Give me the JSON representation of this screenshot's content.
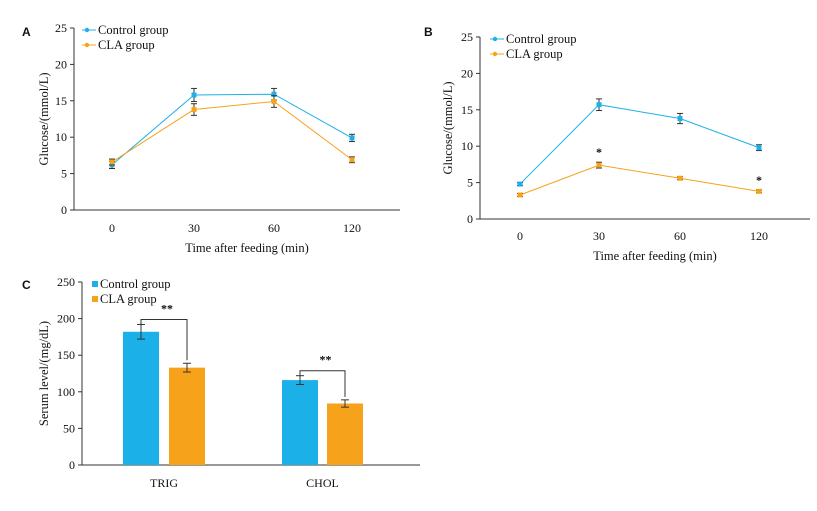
{
  "colors": {
    "control": "#1cb0e8",
    "cla": "#f7a21b"
  },
  "chart_data": [
    {
      "panel": "A",
      "type": "line",
      "x": [
        0,
        30,
        60,
        120
      ],
      "xtick_labels": [
        "0",
        "30",
        "60",
        "120"
      ],
      "xlabel": "Time after feeding (min)",
      "ylabel": "Glucose/(mmol/L)",
      "ylim": [
        0,
        25
      ],
      "yticks": [
        0,
        5,
        10,
        15,
        20,
        25
      ],
      "legend_position": "top-left",
      "series": [
        {
          "name": "Control group",
          "values": [
            6.2,
            15.8,
            15.9,
            9.9
          ],
          "errors": [
            0.5,
            0.9,
            0.8,
            0.5
          ]
        },
        {
          "name": "CLA group",
          "values": [
            6.6,
            13.8,
            14.9,
            6.9
          ],
          "errors": [
            0.4,
            0.8,
            0.8,
            0.4
          ]
        }
      ],
      "annotations": []
    },
    {
      "panel": "B",
      "type": "line",
      "x": [
        0,
        30,
        60,
        120
      ],
      "xtick_labels": [
        "0",
        "30",
        "60",
        "120"
      ],
      "xlabel": "Time after feeding (min)",
      "ylabel": "Glucose/(mmol/L)",
      "ylim": [
        0,
        25
      ],
      "yticks": [
        0,
        5,
        10,
        15,
        20,
        25
      ],
      "legend_position": "top-left",
      "series": [
        {
          "name": "Control group",
          "values": [
            4.8,
            15.7,
            13.8,
            9.8
          ],
          "errors": [
            0.2,
            0.8,
            0.7,
            0.4
          ]
        },
        {
          "name": "CLA group",
          "values": [
            3.3,
            7.4,
            5.6,
            3.8
          ],
          "errors": [
            0.2,
            0.4,
            0.2,
            0.2
          ]
        }
      ],
      "annotations": [
        {
          "series": 1,
          "index": 1,
          "text": "*"
        },
        {
          "series": 1,
          "index": 3,
          "text": "*"
        }
      ]
    },
    {
      "panel": "C",
      "type": "bar",
      "categories": [
        "TRIG",
        "CHOL"
      ],
      "xlabel": "",
      "ylabel": "Serum level/(mg/dL)",
      "ylim": [
        0,
        250
      ],
      "yticks": [
        0,
        50,
        100,
        150,
        200,
        250
      ],
      "legend_position": "top-left",
      "series": [
        {
          "name": "Control group",
          "values": [
            182,
            116
          ],
          "errors": [
            10,
            6
          ]
        },
        {
          "name": "CLA group",
          "values": [
            133,
            84
          ],
          "errors": [
            6,
            5
          ]
        }
      ],
      "significance": [
        {
          "category": 0,
          "text": "**"
        },
        {
          "category": 1,
          "text": "**"
        }
      ]
    }
  ]
}
